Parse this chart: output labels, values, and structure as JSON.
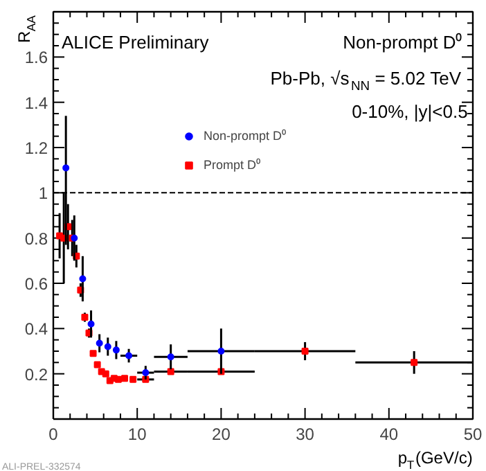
{
  "chart_data": {
    "type": "scatter",
    "xlabel": "p$_{T}$(GeV/c)",
    "ylabel": "R$_{AA}$",
    "annotations": [
      "ALICE Preliminary",
      "Non-prompt D⁰",
      "Pb-Pb, √s$_{NN}$ = 5.02 TeV",
      "0-10%, |y|<0.5",
      "ALI-PREL-332574"
    ],
    "xlim": [
      0,
      50
    ],
    "ylim": [
      0,
      1.8
    ],
    "xticks": [
      0,
      10,
      20,
      30,
      40,
      50
    ],
    "yticks": [
      0.2,
      0.4,
      0.6,
      0.8,
      1,
      1.2,
      1.4,
      1.6
    ],
    "series": [
      {
        "name": "Non-prompt D⁰",
        "color": "#0000ff",
        "marker": "circle",
        "x": [
          1.5,
          2.5,
          3.5,
          4.5,
          5.5,
          6.5,
          7.5,
          9,
          11,
          14,
          20
        ],
        "values": [
          1.11,
          0.8,
          0.62,
          0.42,
          0.335,
          0.32,
          0.305,
          0.28,
          0.205,
          0.275,
          0.3
        ],
        "errors": [
          [
            0.77,
            1.34
          ],
          0.1,
          0.1,
          0.06,
          0.04,
          0.04,
          0.04,
          0.03,
          0.03,
          0.055,
          0.1
        ],
        "xerrors": [
          null,
          null,
          null,
          null,
          null,
          null,
          null,
          [
            8,
            10
          ],
          [
            10,
            12
          ],
          [
            12,
            16
          ],
          [
            16,
            24
          ]
        ]
      },
      {
        "name": "Prompt D⁰",
        "color": "#ff0000",
        "marker": "square",
        "x": [
          0.75,
          1.25,
          1.75,
          2.25,
          2.75,
          3.25,
          3.75,
          4.25,
          4.75,
          5.25,
          5.75,
          6.25,
          6.75,
          7.25,
          7.75,
          8.5,
          9.5,
          11,
          14,
          20,
          30,
          43
        ],
        "values": [
          0.81,
          0.8,
          0.85,
          0.8,
          0.72,
          0.57,
          0.45,
          0.38,
          0.29,
          0.24,
          0.21,
          0.2,
          0.17,
          0.18,
          0.175,
          0.18,
          0.175,
          0.175,
          0.21,
          0.21,
          0.3,
          0.25
        ],
        "errors": [
          0.1,
          0.2,
          0.1,
          0.08,
          0.05,
          0.03,
          0.02,
          0.02,
          null,
          null,
          null,
          null,
          null,
          null,
          null,
          null,
          null,
          null,
          null,
          null,
          0.04,
          0.05
        ],
        "xerrors": [
          null,
          null,
          null,
          null,
          null,
          null,
          null,
          null,
          null,
          null,
          null,
          null,
          null,
          null,
          null,
          null,
          null,
          [
            10,
            12
          ],
          [
            12,
            16
          ],
          [
            16,
            24
          ],
          [
            24,
            36
          ],
          [
            36,
            50
          ]
        ]
      }
    ],
    "ref_lines": [
      {
        "axis": "y",
        "value": 1,
        "line_style": "dashed",
        "color": "#000000"
      }
    ],
    "legend": "top"
  }
}
